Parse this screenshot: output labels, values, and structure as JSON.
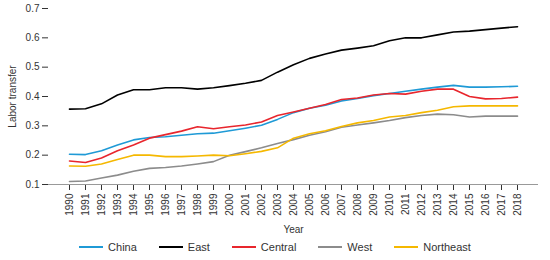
{
  "chart_data": {
    "type": "line",
    "x_label": "Year",
    "y_label": "Labor transfer",
    "categories": [
      "1990",
      "1991",
      "1992",
      "1993",
      "1994",
      "1995",
      "1996",
      "1997",
      "1998",
      "1999",
      "2000",
      "2001",
      "2002",
      "2003",
      "2004",
      "2005",
      "2006",
      "2007",
      "2008",
      "2009",
      "2010",
      "2011",
      "2012",
      "2013",
      "2014",
      "2015",
      "2016",
      "2017",
      "2018"
    ],
    "series": [
      {
        "name": "China",
        "color": "#1f9ad6",
        "values": [
          0.203,
          0.202,
          0.215,
          0.235,
          0.252,
          0.26,
          0.263,
          0.268,
          0.273,
          0.275,
          0.283,
          0.292,
          0.302,
          0.322,
          0.345,
          0.36,
          0.37,
          0.385,
          0.393,
          0.403,
          0.41,
          0.418,
          0.425,
          0.432,
          0.438,
          0.432,
          0.432,
          0.433,
          0.435
        ]
      },
      {
        "name": "East",
        "color": "#000000",
        "values": [
          0.357,
          0.358,
          0.375,
          0.405,
          0.423,
          0.423,
          0.43,
          0.43,
          0.425,
          0.43,
          0.437,
          0.445,
          0.455,
          0.483,
          0.508,
          0.53,
          0.545,
          0.558,
          0.565,
          0.573,
          0.59,
          0.6,
          0.6,
          0.61,
          0.62,
          0.623,
          0.628,
          0.633,
          0.638
        ]
      },
      {
        "name": "Central",
        "color": "#e8262d",
        "values": [
          0.18,
          0.175,
          0.19,
          0.215,
          0.235,
          0.258,
          0.27,
          0.282,
          0.297,
          0.29,
          0.297,
          0.303,
          0.313,
          0.335,
          0.347,
          0.36,
          0.373,
          0.39,
          0.395,
          0.405,
          0.41,
          0.408,
          0.418,
          0.425,
          0.425,
          0.4,
          0.392,
          0.393,
          0.398
        ]
      },
      {
        "name": "West",
        "color": "#8c8c8c",
        "values": [
          0.11,
          0.112,
          0.122,
          0.132,
          0.145,
          0.155,
          0.158,
          0.163,
          0.17,
          0.178,
          0.2,
          0.212,
          0.225,
          0.24,
          0.253,
          0.268,
          0.28,
          0.295,
          0.303,
          0.31,
          0.318,
          0.328,
          0.335,
          0.34,
          0.338,
          0.33,
          0.333,
          0.333,
          0.333
        ]
      },
      {
        "name": "Northeast",
        "color": "#f5b800",
        "values": [
          0.163,
          0.162,
          0.17,
          0.185,
          0.2,
          0.2,
          0.195,
          0.195,
          0.197,
          0.2,
          0.198,
          0.205,
          0.213,
          0.225,
          0.258,
          0.273,
          0.283,
          0.298,
          0.31,
          0.318,
          0.33,
          0.335,
          0.345,
          0.353,
          0.365,
          0.368,
          0.368,
          0.368,
          0.368
        ]
      }
    ],
    "ylim": [
      0.1,
      0.7
    ],
    "yticks": [
      0.1,
      0.2,
      0.3,
      0.4,
      0.5,
      0.6,
      0.7
    ],
    "grid": false,
    "legend": "bottom"
  }
}
